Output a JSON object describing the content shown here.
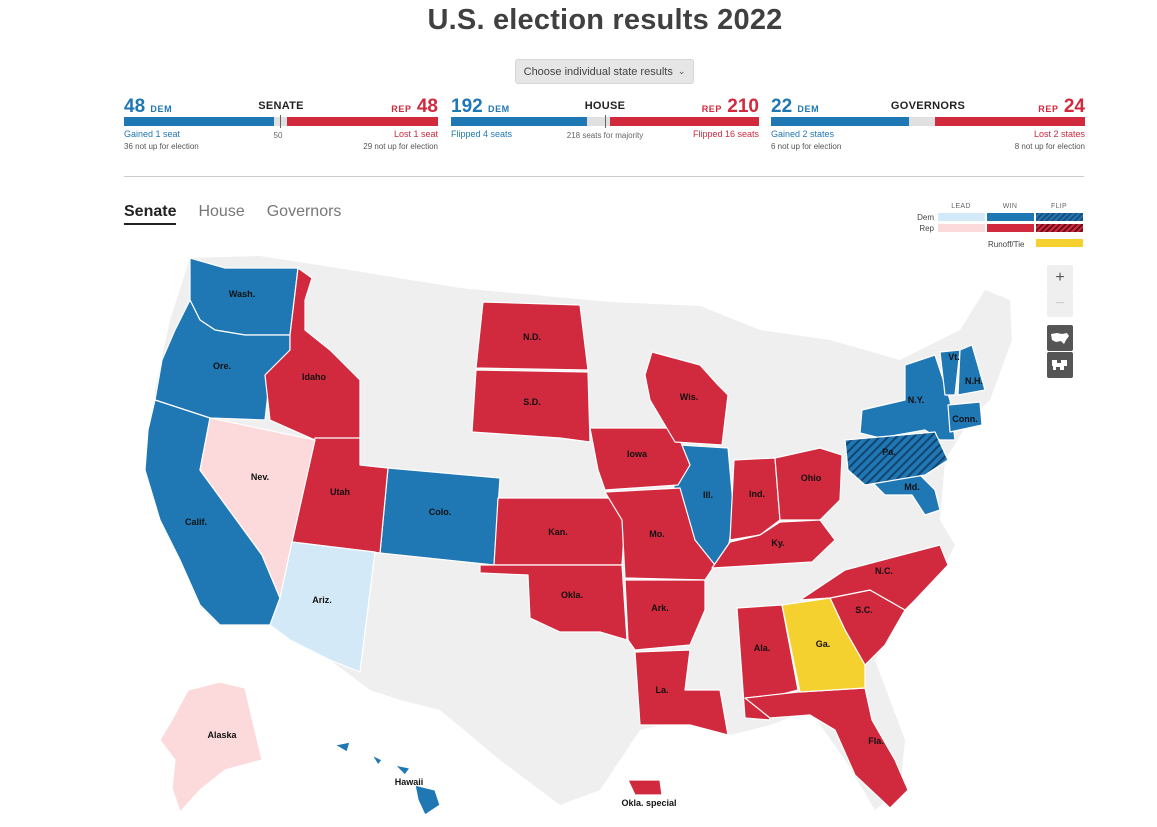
{
  "title": "U.S. election results 2022",
  "picker_label": "Choose individual state results",
  "senate": {
    "label": "SENATE",
    "dem_count": "48",
    "rep_count": "48",
    "dem_abbr": "DEM",
    "rep_abbr": "REP",
    "dem_note": "Gained 1 seat",
    "dem_sub": "36 not up for election",
    "rep_note": "Lost 1 seat",
    "rep_sub": "29 not up for election",
    "mid_note": "50"
  },
  "house": {
    "label": "HOUSE",
    "dem_count": "192",
    "rep_count": "210",
    "dem_abbr": "DEM",
    "rep_abbr": "REP",
    "dem_note": "Flipped 4 seats",
    "rep_note": "Flipped 16 seats",
    "mid_note": "218 seats for majority"
  },
  "governors": {
    "label": "GOVERNORS",
    "dem_count": "22",
    "rep_count": "24",
    "dem_abbr": "DEM",
    "rep_abbr": "REP",
    "dem_note": "Gained 2 states",
    "dem_sub": "6 not up for election",
    "rep_note": "Lost 2 states",
    "rep_sub": "8 not up for election"
  },
  "tabs": [
    "Senate",
    "House",
    "Governors"
  ],
  "legend": {
    "cols": [
      "LEAD",
      "WIN",
      "FLIP"
    ],
    "dem_label": "Dem",
    "rep_label": "Rep",
    "runoff_label": "Runoff/Tie"
  },
  "colors": {
    "dem_win": "#1f77b4",
    "dem_lead": "#d4e9f7",
    "rep_win": "#d1293d",
    "rep_lead": "#fcd9da",
    "runoff": "#f5d130",
    "none": "#efefef"
  },
  "zoom": {
    "plus": "+",
    "minus": "−"
  },
  "states": {
    "wash": "Wash.",
    "ore": "Ore.",
    "calif": "Calif.",
    "nev": "Nev.",
    "idaho": "Idaho",
    "utah": "Utah",
    "ariz": "Ariz.",
    "colo": "Colo.",
    "nd": "N.D.",
    "sd": "S.D.",
    "kan": "Kan.",
    "okla": "Okla.",
    "iowa": "Iowa",
    "mo": "Mo.",
    "ark": "Ark.",
    "la": "La.",
    "wis": "Wis.",
    "ill": "Ill.",
    "ind": "Ind.",
    "ohio": "Ohio",
    "ky": "Ky.",
    "ala": "Ala.",
    "ga": "Ga.",
    "fla": "Fla.",
    "sc": "S.C.",
    "nc": "N.C.",
    "pa": "Pa.",
    "md": "Md.",
    "ny": "N.Y.",
    "vt": "Vt.",
    "nh": "N.H.",
    "conn": "Conn.",
    "alaska": "Alaska",
    "hawaii": "Hawaii",
    "okla_special": "Okla. special"
  }
}
